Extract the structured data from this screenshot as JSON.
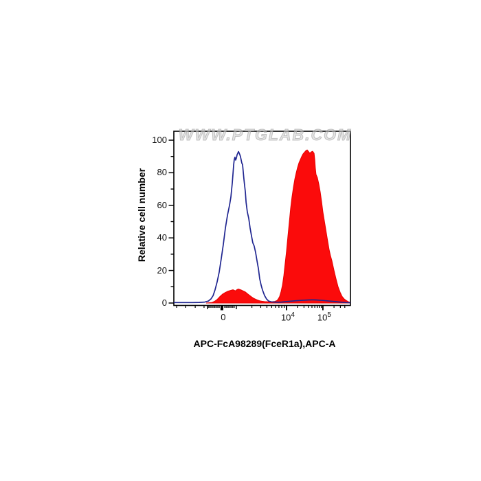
{
  "watermark": "WWW.PTGLAB.COM",
  "colors": {
    "axis": "#000000",
    "blue_curve": "#1f2590",
    "red_fill": "#fb0b0b",
    "red_stroke": "#e60000",
    "watermark_gray": "#cdcdcd"
  },
  "chart_data": {
    "type": "area",
    "title": "",
    "xlabel": "APC-FcA98289(FceR1a),APC-A",
    "ylabel": "Relative cell number",
    "x_scale": "logicle",
    "ylim": [
      0,
      100
    ],
    "grid": "off",
    "legend": "none",
    "y_major_ticks": [
      0,
      20,
      40,
      60,
      80,
      100
    ],
    "y_minor_ticks": [
      10,
      30,
      50,
      70,
      90
    ],
    "x_major_ticks": [
      {
        "base": "0",
        "exp": "",
        "pos": 0.272
      },
      {
        "base": "10",
        "exp": "4",
        "pos": 0.638
      },
      {
        "base": "10",
        "exp": "5",
        "pos": 0.844
      }
    ],
    "x_mid_ticks": [
      0.191,
      0.354
    ],
    "x_minor_ticks": [
      0.016,
      0.066,
      0.121,
      0.171,
      0.195,
      0.202,
      0.21,
      0.218,
      0.226,
      0.233,
      0.241,
      0.249,
      0.257,
      0.288,
      0.296,
      0.303,
      0.311,
      0.319,
      0.327,
      0.334,
      0.342,
      0.442,
      0.492,
      0.527,
      0.554,
      0.576,
      0.595,
      0.611,
      0.625,
      0.7,
      0.737,
      0.762,
      0.782,
      0.798,
      0.812,
      0.824,
      0.835,
      0.907,
      0.943,
      0.968
    ],
    "series": [
      {
        "name": "filled-red-histogram",
        "style": "filled",
        "color": "#e60000",
        "fill": "#fb0b0b",
        "points": [
          [
            0.183,
            0
          ],
          [
            0.214,
            0.3
          ],
          [
            0.23,
            1
          ],
          [
            0.245,
            2.2
          ],
          [
            0.261,
            4
          ],
          [
            0.276,
            5.5
          ],
          [
            0.292,
            6.5
          ],
          [
            0.307,
            7.3
          ],
          [
            0.323,
            7.8
          ],
          [
            0.335,
            8.2
          ],
          [
            0.342,
            7.8
          ],
          [
            0.35,
            7.5
          ],
          [
            0.358,
            8.3
          ],
          [
            0.366,
            8.6
          ],
          [
            0.374,
            8.3
          ],
          [
            0.381,
            8
          ],
          [
            0.393,
            7.4
          ],
          [
            0.405,
            6.8
          ],
          [
            0.416,
            5.8
          ],
          [
            0.428,
            4.8
          ],
          [
            0.44,
            3.8
          ],
          [
            0.451,
            3
          ],
          [
            0.463,
            2.3
          ],
          [
            0.475,
            1.8
          ],
          [
            0.486,
            1.4
          ],
          [
            0.498,
            1.1
          ],
          [
            0.514,
            0.9
          ],
          [
            0.533,
            0.8
          ],
          [
            0.553,
            0.8
          ],
          [
            0.572,
            1
          ],
          [
            0.584,
            1.5
          ],
          [
            0.591,
            2.5
          ],
          [
            0.599,
            4
          ],
          [
            0.607,
            7
          ],
          [
            0.615,
            11
          ],
          [
            0.623,
            17
          ],
          [
            0.63,
            24
          ],
          [
            0.638,
            32
          ],
          [
            0.646,
            41
          ],
          [
            0.654,
            50
          ],
          [
            0.661,
            58
          ],
          [
            0.669,
            65
          ],
          [
            0.677,
            71
          ],
          [
            0.685,
            76
          ],
          [
            0.693,
            80
          ],
          [
            0.7,
            83
          ],
          [
            0.708,
            86
          ],
          [
            0.716,
            88
          ],
          [
            0.724,
            90
          ],
          [
            0.731,
            91.5
          ],
          [
            0.739,
            92.5
          ],
          [
            0.747,
            93.5
          ],
          [
            0.755,
            94
          ],
          [
            0.763,
            93
          ],
          [
            0.77,
            92
          ],
          [
            0.778,
            92.8
          ],
          [
            0.786,
            93.2
          ],
          [
            0.794,
            92
          ],
          [
            0.798,
            88
          ],
          [
            0.801,
            83
          ],
          [
            0.805,
            79
          ],
          [
            0.813,
            77
          ],
          [
            0.821,
            73
          ],
          [
            0.829,
            68
          ],
          [
            0.837,
            62
          ],
          [
            0.844,
            56
          ],
          [
            0.856,
            48
          ],
          [
            0.868,
            40
          ],
          [
            0.879,
            33
          ],
          [
            0.887,
            29
          ],
          [
            0.895,
            26
          ],
          [
            0.907,
            20
          ],
          [
            0.918,
            15
          ],
          [
            0.93,
            10
          ],
          [
            0.942,
            6.5
          ],
          [
            0.953,
            4
          ],
          [
            0.965,
            2.5
          ],
          [
            0.977,
            1.5
          ],
          [
            0.988,
            0.8
          ],
          [
            0.996,
            0.5
          ]
        ]
      },
      {
        "name": "open-blue-histogram",
        "style": "open",
        "color": "#1f2590",
        "fill": "none",
        "points": [
          [
            0.0,
            0.3
          ],
          [
            0.027,
            0.3
          ],
          [
            0.066,
            0.3
          ],
          [
            0.105,
            0.3
          ],
          [
            0.144,
            0.4
          ],
          [
            0.175,
            0.6
          ],
          [
            0.195,
            1.2
          ],
          [
            0.21,
            2.5
          ],
          [
            0.222,
            4.5
          ],
          [
            0.233,
            8
          ],
          [
            0.245,
            13
          ],
          [
            0.257,
            19
          ],
          [
            0.268,
            27
          ],
          [
            0.28,
            36
          ],
          [
            0.292,
            46
          ],
          [
            0.304,
            54
          ],
          [
            0.315,
            60
          ],
          [
            0.323,
            65
          ],
          [
            0.331,
            74
          ],
          [
            0.339,
            85
          ],
          [
            0.342,
            88
          ],
          [
            0.346,
            89.5
          ],
          [
            0.35,
            87.8
          ],
          [
            0.354,
            89
          ],
          [
            0.358,
            91
          ],
          [
            0.366,
            93
          ],
          [
            0.374,
            91
          ],
          [
            0.377,
            90
          ],
          [
            0.385,
            86
          ],
          [
            0.389,
            85
          ],
          [
            0.397,
            76
          ],
          [
            0.405,
            68
          ],
          [
            0.409,
            62
          ],
          [
            0.416,
            56
          ],
          [
            0.424,
            52
          ],
          [
            0.432,
            46
          ],
          [
            0.44,
            41
          ],
          [
            0.447,
            37
          ],
          [
            0.455,
            35
          ],
          [
            0.463,
            31
          ],
          [
            0.471,
            26
          ],
          [
            0.479,
            21
          ],
          [
            0.486,
            15
          ],
          [
            0.494,
            11
          ],
          [
            0.502,
            8
          ],
          [
            0.514,
            4.5
          ],
          [
            0.525,
            2.5
          ],
          [
            0.537,
            1.2
          ],
          [
            0.553,
            0.7
          ],
          [
            0.572,
            0.6
          ],
          [
            0.591,
            0.5
          ],
          [
            0.611,
            0.6
          ],
          [
            0.63,
            0.8
          ],
          [
            0.65,
            1
          ],
          [
            0.689,
            1.4
          ],
          [
            0.728,
            1.7
          ],
          [
            0.767,
            1.9
          ],
          [
            0.786,
            2
          ],
          [
            0.805,
            1.9
          ],
          [
            0.844,
            1.6
          ],
          [
            0.883,
            1.2
          ],
          [
            0.922,
            0.8
          ],
          [
            0.949,
            0.5
          ],
          [
            0.973,
            0.3
          ],
          [
            0.996,
            0.2
          ]
        ]
      }
    ]
  }
}
